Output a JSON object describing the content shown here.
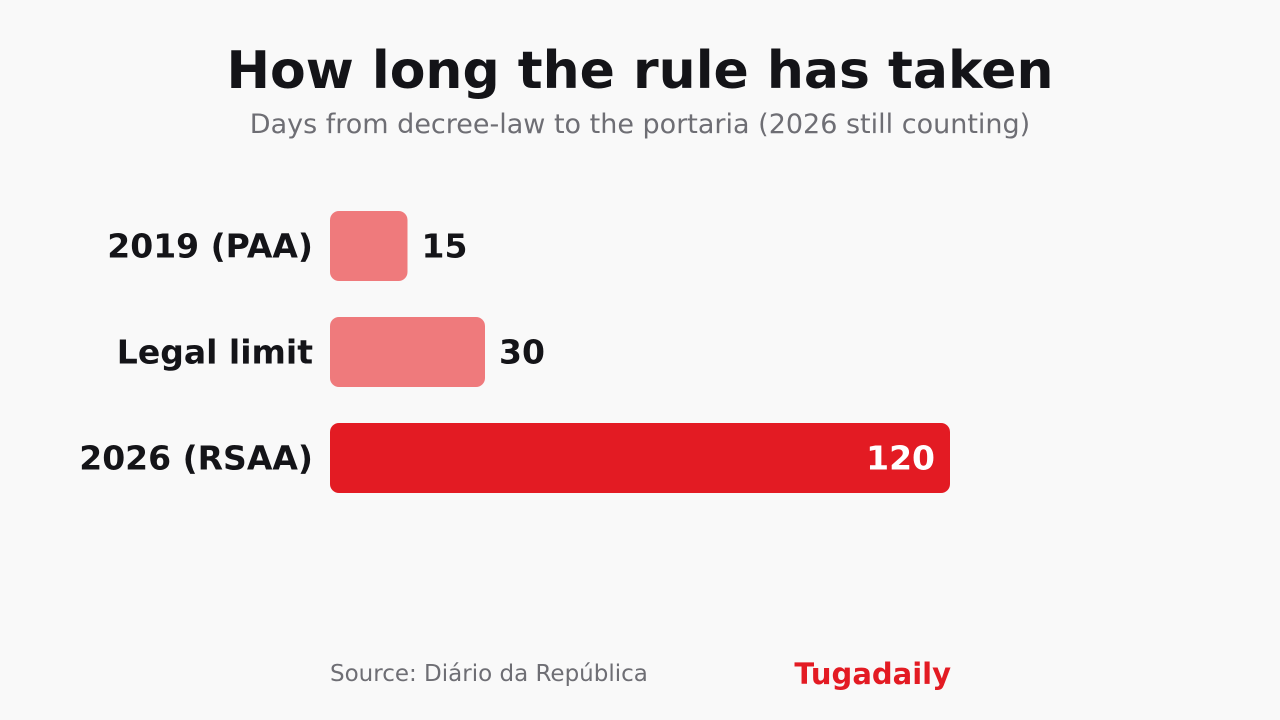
{
  "header": {
    "title": "How long the rule has taken",
    "subtitle": "Days from decree-law to the portaria (2026 still counting)"
  },
  "footer": {
    "source": "Source: Diário da República",
    "brand": "Tugadaily"
  },
  "colors": {
    "highlight": "#e31b23",
    "muted": "#ef7a7c",
    "label": "#141418",
    "value_inside": "#ffffff"
  },
  "chart_data": {
    "type": "bar",
    "orientation": "horizontal",
    "title": "How long the rule has taken",
    "subtitle": "Days from decree-law to the portaria (2026 still counting)",
    "categories": [
      "2019 (PAA)",
      "Legal limit",
      "2026 (RSAA)"
    ],
    "values": [
      15,
      30,
      120
    ],
    "highlighted": [
      false,
      false,
      true
    ],
    "xlim": [
      0,
      120
    ],
    "grid": false,
    "legend": "none",
    "value_labels": true
  }
}
